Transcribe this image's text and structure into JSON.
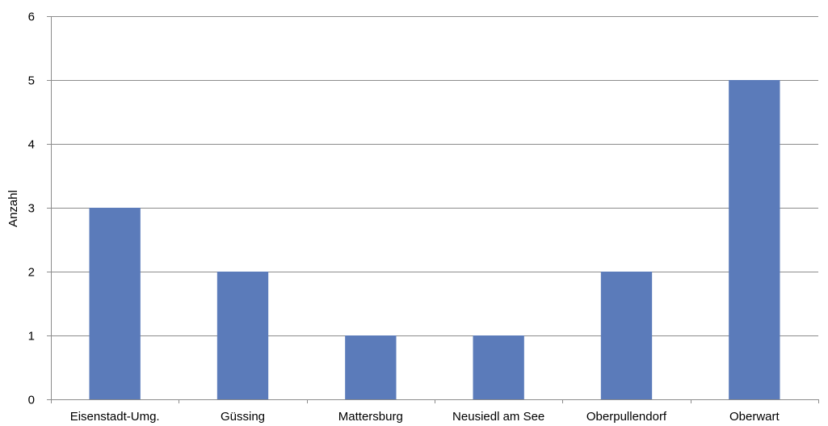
{
  "chart_data": {
    "type": "bar",
    "title": "",
    "xlabel": "",
    "ylabel": "Anzahl",
    "categories": [
      "Eisenstadt-Umg.",
      "Güssing",
      "Mattersburg",
      "Neusiedl am See",
      "Oberpullendorf",
      "Oberwart"
    ],
    "series": [
      {
        "values": [
          3,
          2,
          1,
          1,
          2,
          5
        ]
      }
    ],
    "ylim": [
      0,
      6
    ],
    "yticks": [
      0,
      1,
      2,
      3,
      4,
      5,
      6
    ],
    "grid": true,
    "legend": "none",
    "bar_color": "#5b7bba",
    "grid_color": "#8c8c8c"
  }
}
